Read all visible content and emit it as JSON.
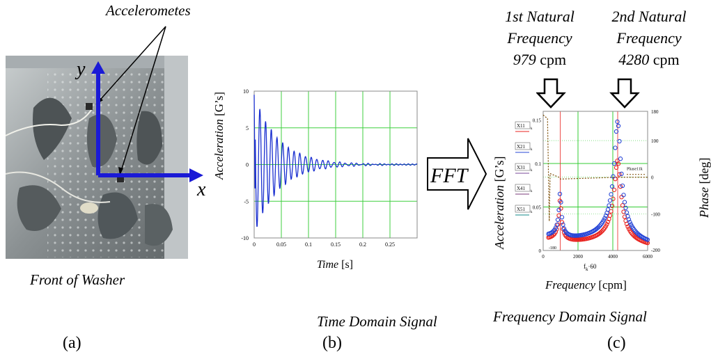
{
  "panel_a": {
    "accelerometer_label": "Accelerometes",
    "axis_x": "x",
    "axis_y": "y",
    "caption": "Front of Washer",
    "letter": "(a)",
    "colors": {
      "axis_arrow": "#1a1ad6",
      "drum": "#8f9596"
    }
  },
  "panel_b": {
    "ylabel_italic": "Acceleration",
    "ylabel_unit": "[G’s]",
    "xlabel_italic": "Time",
    "xlabel_unit": "[s]",
    "caption": "Time Domain Signal",
    "letter": "(b)",
    "y_ticks": [
      "10",
      "5",
      "0",
      "-5",
      "-10"
    ],
    "x_ticks": [
      "0",
      "0.05",
      "0.1",
      "0.15",
      "0.2",
      "0.25"
    ]
  },
  "fft_label": "FFT",
  "panel_c": {
    "mode1_line1": "1st Natural",
    "mode1_line2": "Frequency",
    "mode1_value": "979",
    "mode1_unit": "cpm",
    "mode2_line1": "2nd Natural",
    "mode2_line2": "Frequency",
    "mode2_value": "4280",
    "mode2_unit": "cpm",
    "ylabel_italic": "Acceleration",
    "ylabel_unit": "[G’s]",
    "ylabel_right_italic": "Phase",
    "ylabel_right_unit": "[deg]",
    "xlabel_italic": "Frequency",
    "xlabel_unit": "[cpm]",
    "axis_var_label": "f",
    "axis_var_sub": "k",
    "axis_var_suffix": "·60",
    "caption": "Frequency Domain Signal",
    "letter": "(c)",
    "left_ticks": [
      "0.15",
      "0.1",
      "0.05",
      "0"
    ],
    "right_ticks": [
      "180",
      "100",
      "0",
      "-100",
      "-200"
    ],
    "x_ticks": [
      "0",
      "2000",
      "4000",
      "6000"
    ],
    "legend": [
      {
        "name": "X11",
        "sub": "k"
      },
      {
        "name": "X21",
        "sub": "k"
      },
      {
        "name": "X31",
        "sub": "k"
      },
      {
        "name": "X41",
        "sub": "k"
      },
      {
        "name": "X51",
        "sub": "k"
      }
    ],
    "phase_legend": {
      "name": "Phase11",
      "sub": "k"
    },
    "corner_labels": {
      "bottom_left": "-180"
    },
    "colors": {
      "series_red": "#e8231f",
      "series_blue": "#2544d6",
      "grid": "#33cc33",
      "phase": "#7a4a00"
    }
  },
  "chart_data": [
    {
      "type": "line",
      "title": "",
      "xlabel": "Time [s]",
      "ylabel": "Acceleration [G’s]",
      "xlim": [
        0,
        0.3
      ],
      "ylim": [
        -10,
        10
      ],
      "grid": true,
      "series": [
        {
          "values_note": "decaying oscillation",
          "x": [
            0,
            0.005,
            0.01,
            0.015,
            0.02,
            0.03,
            0.04,
            0.05,
            0.06,
            0.08,
            0.1,
            0.12,
            0.15,
            0.2,
            0.25,
            0.3
          ],
          "y": [
            9.5,
            -7.5,
            5,
            -6,
            4.5,
            -4,
            3.5,
            -2.8,
            2.4,
            1.6,
            1.0,
            0.6,
            0.3,
            0.1,
            0.05,
            0
          ]
        }
      ]
    },
    {
      "type": "line",
      "title": "",
      "xlabel": "Frequency [cpm]",
      "ylabel": "Acceleration [G’s]",
      "xlim": [
        0,
        6000
      ],
      "ylim": [
        0,
        0.16
      ],
      "y2lim": [
        -200,
        180
      ],
      "grid": true,
      "peaks": [
        {
          "frequency": 979,
          "unit": "cpm"
        },
        {
          "frequency": 4280,
          "unit": "cpm"
        }
      ],
      "series": [
        {
          "color": "red",
          "x": [
            0,
            300,
            600,
            900,
            979,
            1100,
            1500,
            2000,
            2500,
            3000,
            3500,
            3800,
            4000,
            4150,
            4280,
            4400,
            4600,
            5000,
            5500,
            6000
          ],
          "y": [
            0.0,
            0.005,
            0.02,
            0.045,
            0.06,
            0.04,
            0.02,
            0.018,
            0.02,
            0.025,
            0.035,
            0.05,
            0.07,
            0.09,
            0.103,
            0.09,
            0.06,
            0.03,
            0.015,
            0.008
          ]
        },
        {
          "color": "blue",
          "x": [
            0,
            300,
            600,
            900,
            979,
            1100,
            1500,
            2000,
            2500,
            3000,
            3500,
            3800,
            4000,
            4150,
            4280,
            4400,
            4600,
            5000,
            5500,
            6000
          ],
          "y": [
            0.0,
            0.006,
            0.025,
            0.05,
            0.065,
            0.045,
            0.025,
            0.024,
            0.028,
            0.035,
            0.05,
            0.07,
            0.1,
            0.13,
            0.148,
            0.13,
            0.085,
            0.04,
            0.02,
            0.01
          ]
        }
      ]
    }
  ]
}
